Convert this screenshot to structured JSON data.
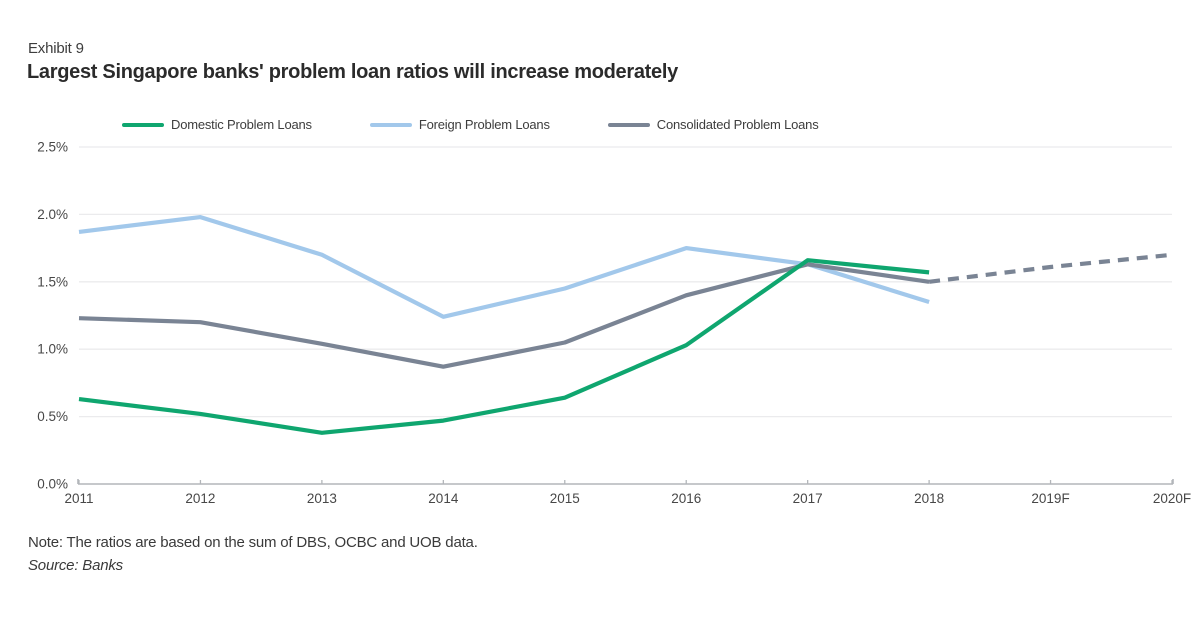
{
  "exhibit_label": "Exhibit 9",
  "title": "Largest Singapore banks' problem loan ratios will increase moderately",
  "note": "Note: The ratios are based on the sum of DBS, OCBC and UOB data.",
  "source": "Source: Banks",
  "colors": {
    "domestic_green": "#0fa66f",
    "foreign_blue": "#a2c8eb",
    "consolidated_gray": "#7a8494",
    "gridline": "#ebebed",
    "axis": "#b3b6ba",
    "tick_label": "#474747"
  },
  "chart_data": {
    "type": "line",
    "x": [
      "2011",
      "2012",
      "2013",
      "2014",
      "2015",
      "2016",
      "2017",
      "2018",
      "2019F",
      "2020F"
    ],
    "series": [
      {
        "name": "Foreign Problem Loans",
        "color": "#a2c8eb",
        "style": "solid",
        "values": [
          1.87,
          1.98,
          1.7,
          1.24,
          1.45,
          1.75,
          1.63,
          1.35,
          null,
          null
        ]
      },
      {
        "name": "Consolidated Problem Loans",
        "color": "#7a8494",
        "style": "solid",
        "values": [
          1.23,
          1.2,
          1.04,
          0.87,
          1.05,
          1.4,
          1.63,
          1.5,
          null,
          null
        ]
      },
      {
        "name": "Consolidated Problem Loans forecast",
        "color": "#7a8494",
        "style": "dashed",
        "legend": false,
        "values": [
          null,
          null,
          null,
          null,
          null,
          null,
          null,
          1.5,
          1.61,
          1.7
        ]
      },
      {
        "name": "Domestic Problem Loans",
        "color": "#0fa66f",
        "style": "solid",
        "values": [
          0.63,
          0.52,
          0.38,
          0.47,
          0.64,
          1.03,
          1.66,
          1.57,
          null,
          null
        ]
      }
    ],
    "legend_order": [
      "Domestic Problem Loans",
      "Foreign Problem Loans",
      "Consolidated Problem Loans"
    ],
    "ylim": [
      0,
      2.5
    ],
    "yticks": [
      "0.0%",
      "0.5%",
      "1.0%",
      "1.5%",
      "2.0%",
      "2.5%"
    ],
    "xlabel": "",
    "ylabel": "",
    "grid": true,
    "legend_position": "top"
  }
}
